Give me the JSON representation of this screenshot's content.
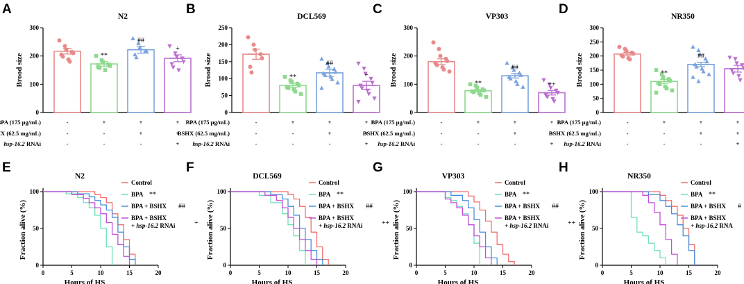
{
  "colors": {
    "control": "#e88a8a",
    "bpa": "#8ed98e",
    "bshx": "#7ba3de",
    "rnai": "#bb6fcf",
    "surv_control": "#f26d6d",
    "surv_bpa": "#6fe0b4",
    "surv_bshx": "#4a8fdc",
    "surv_rnai": "#c34fdb"
  },
  "treatment_labels": {
    "bpa": "BPA (175 μg/mL)",
    "bshx": "BSHX (62.5 mg/mL)",
    "rnai_gene": "hsp-16.2",
    "rnai_suffix": " RNAi"
  },
  "chart_data": [
    {
      "panel": "A",
      "type": "bar",
      "title": "N2",
      "ylabel": "Brood size",
      "ylim": [
        0,
        300
      ],
      "yticks": [
        0,
        100,
        200,
        300
      ],
      "categories": [
        "Control",
        "BPA",
        "BPA + BSHX",
        "BPA + BSHX + hsp-16.2 RNAi"
      ],
      "values": [
        217,
        172,
        222,
        192
      ],
      "errors": [
        10,
        8,
        12,
        12
      ],
      "significance": [
        "",
        "**",
        "##",
        "+"
      ],
      "conditions": {
        "bpa": [
          "-",
          "+",
          "+",
          "+"
        ],
        "bshx": [
          "-",
          "-",
          "+",
          "+"
        ],
        "rnai": [
          "-",
          "-",
          "-",
          "+"
        ]
      },
      "points": [
        [
          255,
          235,
          222,
          215,
          210,
          205,
          198,
          188,
          180
        ],
        [
          200,
          185,
          178,
          170,
          165,
          162,
          158,
          150
        ],
        [
          262,
          245,
          230,
          218,
          215,
          205,
          195
        ],
        [
          235,
          210,
          198,
          192,
          180,
          172,
          160,
          150
        ]
      ]
    },
    {
      "panel": "B",
      "type": "bar",
      "title": "DCL569",
      "ylabel": "Brood size",
      "ylim": [
        0,
        250
      ],
      "yticks": [
        0,
        50,
        100,
        150,
        200,
        250
      ],
      "categories": [
        "Control",
        "BPA",
        "BPA + BSHX",
        "BPA + BSHX + hsp-16.2 RNAi"
      ],
      "values": [
        172,
        80,
        117,
        80
      ],
      "errors": [
        15,
        6,
        10,
        12
      ],
      "significance": [
        "",
        "**",
        "##",
        "+"
      ],
      "conditions": {
        "bpa": [
          "-",
          "+",
          "+",
          "+"
        ],
        "bshx": [
          "-",
          "-",
          "+",
          "+"
        ],
        "rnai": [
          "-",
          "-",
          "-",
          "+"
        ]
      },
      "points": [
        [
          222,
          200,
          185,
          172,
          160,
          135,
          118
        ],
        [
          105,
          95,
          90,
          85,
          80,
          75,
          72,
          68,
          62,
          55
        ],
        [
          158,
          145,
          135,
          128,
          120,
          115,
          110,
          105,
          98,
          88,
          72
        ],
        [
          145,
          130,
          115,
          100,
          88,
          80,
          72,
          65,
          55,
          42,
          32
        ]
      ]
    },
    {
      "panel": "C",
      "type": "bar",
      "title": "VP303",
      "ylabel": "Brood size",
      "ylim": [
        0,
        300
      ],
      "yticks": [
        0,
        100,
        200,
        300
      ],
      "categories": [
        "Control",
        "BPA",
        "BPA + BSHX",
        "BPA + BSHX + hsp-16.2 RNAi"
      ],
      "values": [
        180,
        77,
        130,
        70
      ],
      "errors": [
        10,
        4,
        8,
        8
      ],
      "significance": [
        "",
        "**",
        "##",
        "++"
      ],
      "conditions": {
        "bpa": [
          "-",
          "+",
          "+",
          "+"
        ],
        "bshx": [
          "-",
          "-",
          "+",
          "+"
        ],
        "rnai": [
          "-",
          "-",
          "-",
          "+"
        ]
      },
      "points": [
        [
          248,
          225,
          200,
          190,
          182,
          175,
          168,
          160,
          152,
          145
        ],
        [
          100,
          95,
          88,
          82,
          78,
          75,
          72,
          68,
          62,
          55
        ],
        [
          175,
          160,
          150,
          140,
          132,
          125,
          120,
          110,
          100,
          90
        ],
        [
          115,
          100,
          88,
          78,
          70,
          62,
          55,
          48,
          40
        ]
      ]
    },
    {
      "panel": "D",
      "type": "bar",
      "title": "NR350",
      "ylabel": "Brood size",
      "ylim": [
        0,
        300
      ],
      "yticks": [
        0,
        50,
        100,
        150,
        200,
        250,
        300
      ],
      "categories": [
        "Control",
        "BPA",
        "BPA + BSHX",
        "BPA + BSHX + hsp-16.2 RNAi"
      ],
      "values": [
        207,
        110,
        170,
        155
      ],
      "errors": [
        6,
        7,
        8,
        12
      ],
      "significance": [
        "",
        "**",
        "##",
        ""
      ],
      "conditions": {
        "bpa": [
          "-",
          "+",
          "+",
          "+"
        ],
        "bshx": [
          "-",
          "-",
          "+",
          "+"
        ],
        "rnai": [
          "-",
          "-",
          "-",
          "+"
        ]
      },
      "points": [
        [
          232,
          225,
          218,
          212,
          208,
          203,
          198,
          192,
          188
        ],
        [
          150,
          135,
          125,
          118,
          112,
          105,
          100,
          92,
          85,
          78,
          70
        ],
        [
          232,
          220,
          205,
          190,
          180,
          170,
          162,
          155,
          145,
          135,
          125,
          110
        ],
        [
          195,
          190,
          175,
          168,
          158,
          150,
          140,
          130,
          115,
          100
        ]
      ]
    },
    {
      "panel": "E",
      "type": "line",
      "title": "N2",
      "xlabel": "Hours of HS",
      "ylabel": "Fraction alive (%)",
      "xlim": [
        0,
        20
      ],
      "ylim": [
        0,
        100
      ],
      "xticks": [
        0,
        5,
        10,
        15,
        20
      ],
      "yticks": [
        0,
        50,
        100
      ],
      "legend": [
        {
          "label": "Control",
          "sig": ""
        },
        {
          "label": "BPA",
          "sig": "**"
        },
        {
          "label": "BPA + BSHX",
          "sig": "##"
        },
        {
          "label": "BPA + BSHX",
          "line2": "+ hsp-16.2",
          "tail": " RNAi",
          "sig": "+"
        }
      ],
      "series": [
        {
          "name": "Control",
          "x": [
            0,
            6,
            9,
            10,
            11,
            12,
            13,
            14,
            15,
            16
          ],
          "y": [
            100,
            100,
            96,
            92,
            85,
            70,
            55,
            35,
            15,
            0
          ]
        },
        {
          "name": "BPA",
          "x": [
            0,
            4,
            6,
            7,
            8,
            9,
            10,
            11,
            12
          ],
          "y": [
            100,
            97,
            92,
            85,
            78,
            68,
            50,
            25,
            0
          ]
        },
        {
          "name": "BPA + BSHX",
          "x": [
            0,
            6,
            8,
            9,
            10,
            11,
            12,
            13,
            14,
            15,
            16
          ],
          "y": [
            100,
            97,
            93,
            88,
            82,
            75,
            65,
            45,
            25,
            8,
            0
          ]
        },
        {
          "name": "BPA + BSHX + hsp-16.2 RNAi",
          "x": [
            0,
            5,
            7,
            8,
            9,
            10,
            11,
            12,
            13,
            14,
            15
          ],
          "y": [
            100,
            96,
            91,
            85,
            78,
            70,
            58,
            42,
            28,
            12,
            0
          ]
        }
      ]
    },
    {
      "panel": "F",
      "type": "line",
      "title": "DCL569",
      "xlabel": "Hours of HS",
      "ylabel": "Fraction alive (%)",
      "xlim": [
        0,
        20
      ],
      "ylim": [
        0,
        100
      ],
      "xticks": [
        0,
        5,
        10,
        15,
        20
      ],
      "yticks": [
        0,
        50,
        100
      ],
      "legend": [
        {
          "label": "Control",
          "sig": ""
        },
        {
          "label": "BPA",
          "sig": "**"
        },
        {
          "label": "BPA + BSHX",
          "sig": "##"
        },
        {
          "label": "BPA + BSHX",
          "line2": "+ hsp-16.2",
          "tail": " RNAi",
          "sig": "++"
        }
      ],
      "series": [
        {
          "name": "Control",
          "x": [
            0,
            8,
            10,
            11,
            12,
            13,
            14,
            15,
            16,
            17
          ],
          "y": [
            100,
            100,
            96,
            90,
            80,
            65,
            45,
            25,
            8,
            0
          ]
        },
        {
          "name": "BPA",
          "x": [
            0,
            5,
            7,
            9,
            10,
            11,
            12,
            13
          ],
          "y": [
            100,
            95,
            85,
            70,
            55,
            40,
            20,
            0
          ]
        },
        {
          "name": "BPA + BSHX",
          "x": [
            0,
            7,
            9,
            10,
            11,
            12,
            13,
            14,
            15,
            16
          ],
          "y": [
            100,
            96,
            90,
            80,
            68,
            50,
            35,
            20,
            8,
            0
          ]
        },
        {
          "name": "BPA + BSHX + hsp-16.2 RNAi",
          "x": [
            0,
            6,
            8,
            9,
            10,
            11,
            12,
            13,
            14,
            15
          ],
          "y": [
            100,
            95,
            88,
            78,
            65,
            50,
            35,
            20,
            8,
            0
          ]
        }
      ]
    },
    {
      "panel": "G",
      "type": "line",
      "title": "VP303",
      "xlabel": "Hours of HS",
      "ylabel": "Fraction alive (%)",
      "xlim": [
        0,
        20
      ],
      "ylim": [
        0,
        100
      ],
      "xticks": [
        0,
        5,
        10,
        15,
        20
      ],
      "yticks": [
        0,
        50,
        100
      ],
      "legend": [
        {
          "label": "Control",
          "sig": ""
        },
        {
          "label": "BPA",
          "sig": "**"
        },
        {
          "label": "BPA + BSHX",
          "sig": "##"
        },
        {
          "label": "BPA + BSHX",
          "line2": "+ hsp-16.2",
          "tail": " RNAi",
          "sig": "++"
        }
      ],
      "series": [
        {
          "name": "Control",
          "x": [
            0,
            7,
            9,
            10,
            11,
            12,
            13,
            14,
            15,
            16,
            17
          ],
          "y": [
            100,
            100,
            94,
            86,
            75,
            60,
            45,
            28,
            15,
            5,
            0
          ]
        },
        {
          "name": "BPA",
          "x": [
            0,
            5,
            6,
            7,
            8,
            9,
            10,
            11
          ],
          "y": [
            100,
            92,
            88,
            80,
            70,
            55,
            30,
            0
          ]
        },
        {
          "name": "BPA + BSHX",
          "x": [
            0,
            6,
            8,
            9,
            10,
            11,
            12,
            13,
            14
          ],
          "y": [
            100,
            95,
            88,
            78,
            62,
            45,
            25,
            10,
            0
          ]
        },
        {
          "name": "BPA + BSHX + hsp-16.2 RNAi",
          "x": [
            0,
            5,
            6,
            7,
            8,
            9,
            10,
            11,
            12,
            13
          ],
          "y": [
            100,
            90,
            85,
            78,
            68,
            55,
            40,
            25,
            10,
            0
          ]
        }
      ]
    },
    {
      "panel": "H",
      "type": "line",
      "title": "NR350",
      "xlabel": "Hours of HS",
      "ylabel": "Fraction alive (%)",
      "xlim": [
        0,
        20
      ],
      "ylim": [
        0,
        100
      ],
      "xticks": [
        0,
        5,
        10,
        15,
        20
      ],
      "yticks": [
        0,
        50,
        100
      ],
      "legend": [
        {
          "label": "Control",
          "sig": ""
        },
        {
          "label": "BPA",
          "sig": "**"
        },
        {
          "label": "BPA + BSHX",
          "sig": "#"
        },
        {
          "label": "BPA + BSHX",
          "line2": "+ hsp-16.2",
          "tail": " RNA",
          "sig": ""
        }
      ],
      "series": [
        {
          "name": "Control",
          "x": [
            0,
            8,
            10,
            11,
            12,
            13,
            14,
            15,
            16
          ],
          "y": [
            100,
            100,
            95,
            88,
            80,
            68,
            50,
            28,
            0
          ]
        },
        {
          "name": "BPA",
          "x": [
            0,
            5,
            6,
            7,
            8,
            9,
            10,
            11
          ],
          "y": [
            100,
            65,
            45,
            40,
            30,
            20,
            10,
            0
          ]
        },
        {
          "name": "BPA + BSHX",
          "x": [
            0,
            8,
            10,
            11,
            12,
            13,
            14,
            15,
            16
          ],
          "y": [
            100,
            96,
            88,
            80,
            70,
            55,
            40,
            20,
            0
          ]
        },
        {
          "name": "BPA + BSHX + hsp-16.2 RNAi",
          "x": [
            0,
            7,
            8,
            9,
            10,
            11,
            12,
            13
          ],
          "y": [
            100,
            95,
            85,
            72,
            55,
            35,
            15,
            0
          ]
        }
      ]
    }
  ]
}
